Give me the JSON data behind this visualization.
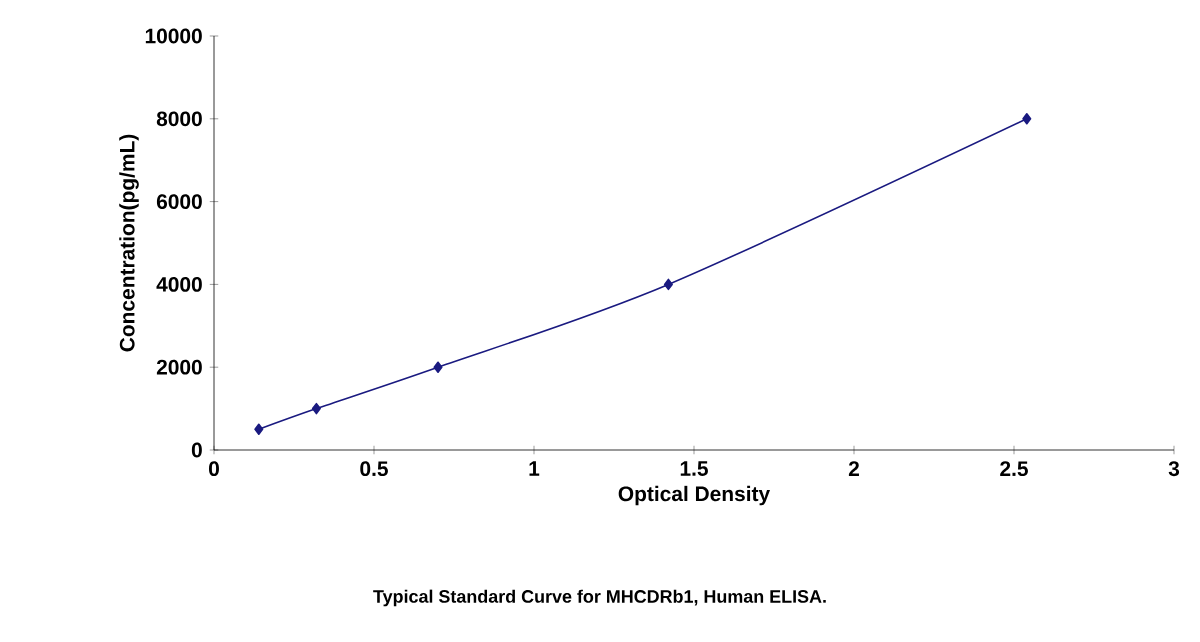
{
  "chart_data": {
    "type": "line",
    "title": "Typical Standard Curve for MHCDRb1, Human ELISA.",
    "xlabel": "Optical Density",
    "ylabel": "Concentration(pg/mL)",
    "x": [
      0.14,
      0.32,
      0.7,
      1.42,
      2.54
    ],
    "series": [
      {
        "color": "#1a1a80",
        "values": [
          500,
          1000,
          2000,
          4000,
          8000
        ]
      }
    ],
    "xlim": [
      0,
      3
    ],
    "ylim": [
      0,
      10000
    ],
    "xticks": [
      0,
      0.5,
      1,
      1.5,
      2,
      2.5,
      3
    ],
    "yticks": [
      0,
      2000,
      4000,
      6000,
      8000,
      10000
    ],
    "marker": "diamond",
    "line_style": "solid"
  }
}
